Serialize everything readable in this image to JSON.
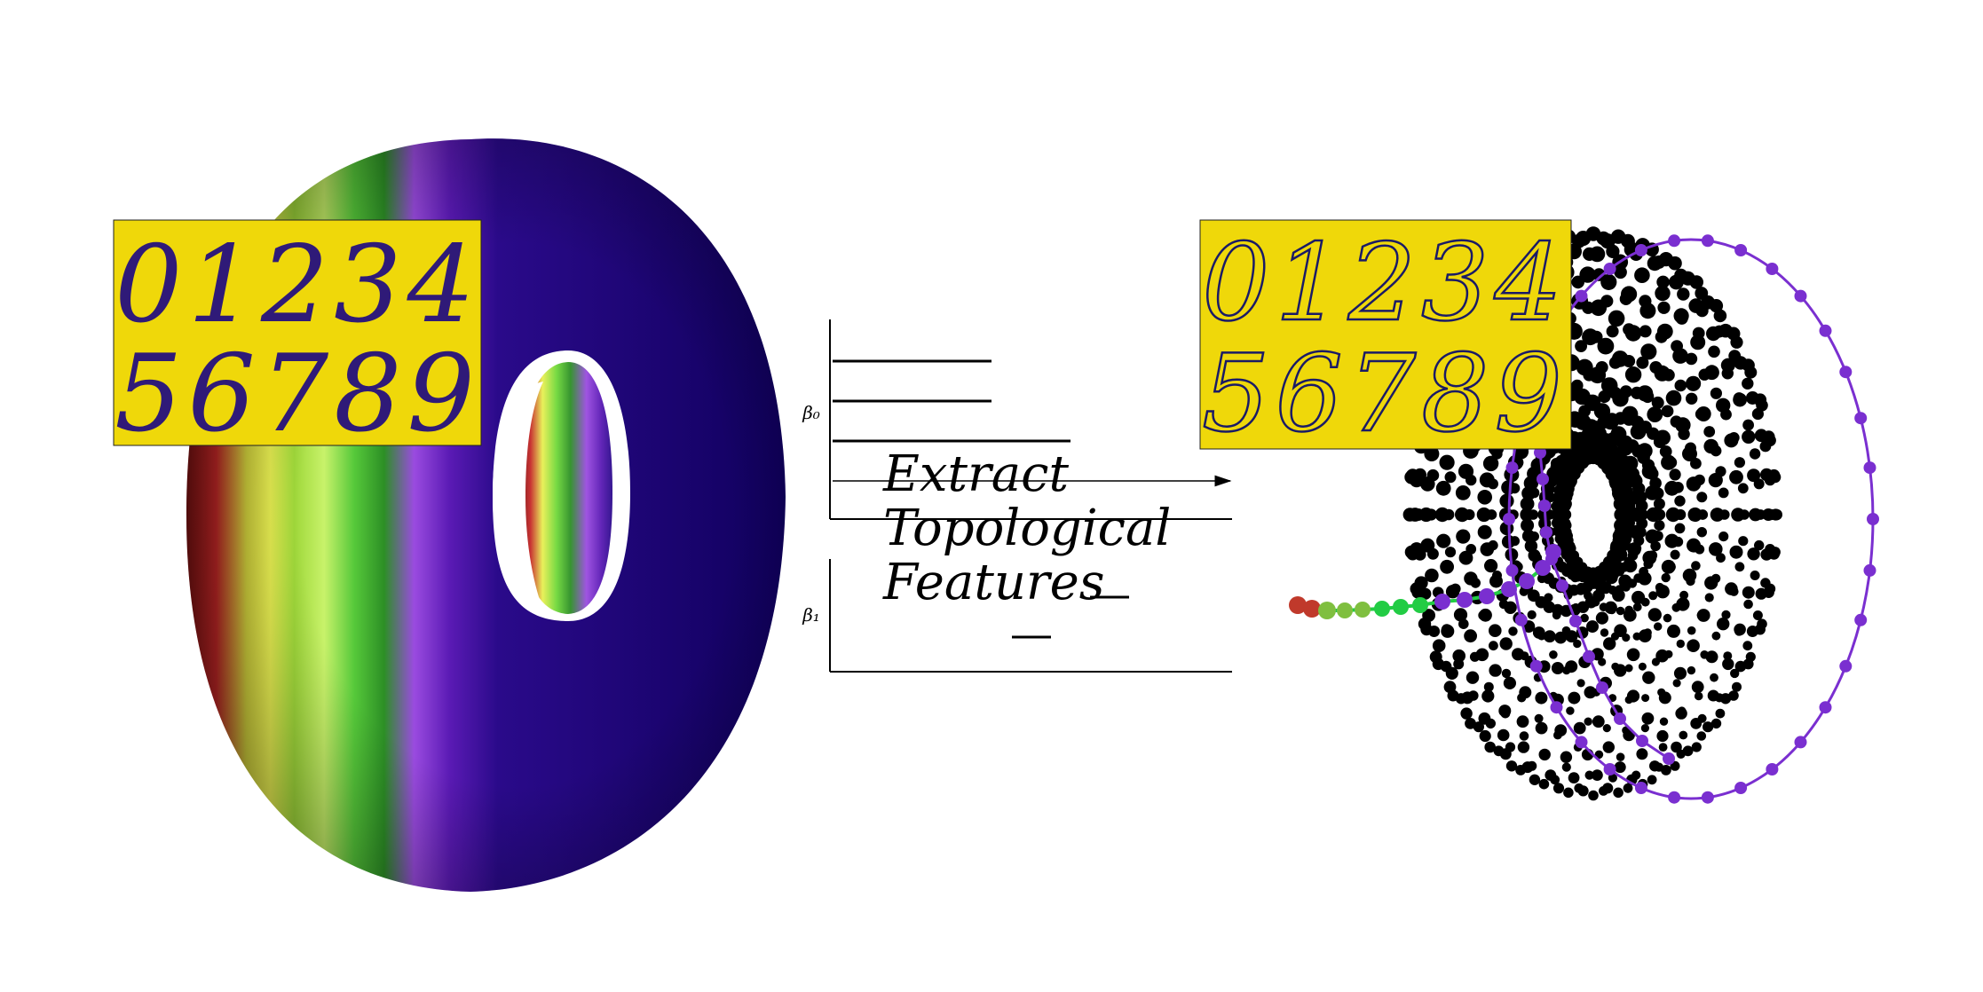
{
  "left_panel": {
    "digit_row_1": "01234",
    "digit_row_2": "56789",
    "palette": [
      "#8b1a1a",
      "#c62828",
      "#e8e84a",
      "#b4e83c",
      "#47d13a",
      "#2f9e2a",
      "#8a2be2",
      "#6a1fc1",
      "#3b0b8c",
      "#12006b"
    ]
  },
  "diagram": {
    "label_beta0": "β₀",
    "label_beta1": "β₁",
    "caption_lines": [
      "Extract",
      "Topological",
      "Features"
    ]
  },
  "right_panel": {
    "digit_row_1": "01234",
    "digit_row_2": "56789",
    "point_color": "#000000",
    "path_color": "#7a2fd0",
    "arm_gradient": [
      "#c0392b",
      "#7fbf3f",
      "#22cc44",
      "#7a2fd0"
    ]
  },
  "colors": {
    "card_yellow": "#efd80a",
    "digit_ink": "#2f1a78",
    "contour_ink": "#1a1a66"
  }
}
